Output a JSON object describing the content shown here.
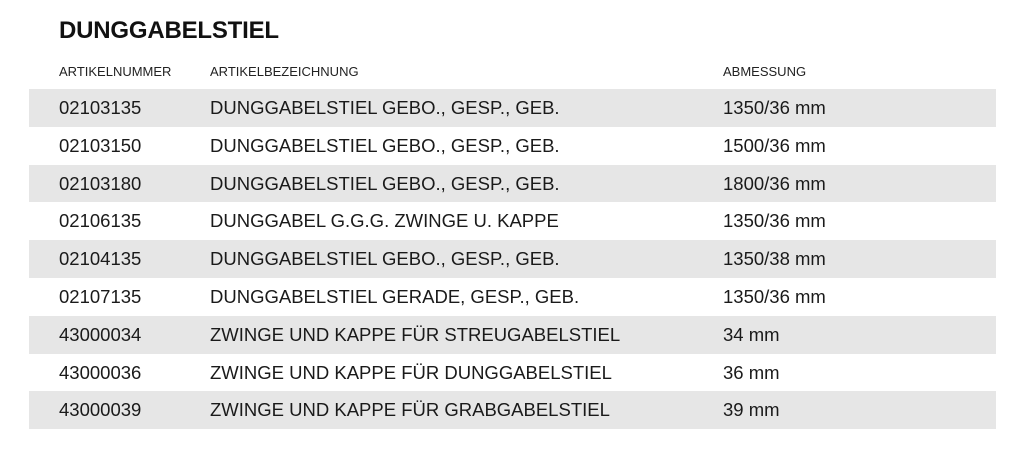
{
  "title": "DUNGGABELSTIEL",
  "columns": {
    "article_number": "ARTIKELNUMMER",
    "description": "ARTIKELBEZEICHNUNG",
    "dimension": "ABMESSUNG"
  },
  "rows": [
    {
      "number": "02103135",
      "description": "DUNGGABELSTIEL GEBO., GESP., GEB.",
      "dimension": "1350/36 mm"
    },
    {
      "number": "02103150",
      "description": "DUNGGABELSTIEL GEBO., GESP., GEB.",
      "dimension": "1500/36 mm"
    },
    {
      "number": "02103180",
      "description": "DUNGGABELSTIEL GEBO., GESP., GEB.",
      "dimension": "1800/36 mm"
    },
    {
      "number": "02106135",
      "description": "DUNGGABEL G.G.G. ZWINGE U. KAPPE",
      "dimension": "1350/36 mm"
    },
    {
      "number": "02104135",
      "description": "DUNGGABELSTIEL GEBO., GESP., GEB.",
      "dimension": "1350/38 mm"
    },
    {
      "number": "02107135",
      "description": "DUNGGABELSTIEL GERADE, GESP., GEB.",
      "dimension": "1350/36 mm"
    },
    {
      "number": "43000034",
      "description": "ZWINGE UND KAPPE FÜR STREUGABELSTIEL",
      "dimension": "34 mm"
    },
    {
      "number": "43000036",
      "description": "ZWINGE UND KAPPE FÜR DUNGGABELSTIEL",
      "dimension": "36 mm"
    },
    {
      "number": "43000039",
      "description": "ZWINGE UND KAPPE FÜR GRABGABELSTIEL",
      "dimension": "39 mm"
    }
  ],
  "colors": {
    "row_shade": "#e6e6e6",
    "text": "#1a1a1a"
  }
}
